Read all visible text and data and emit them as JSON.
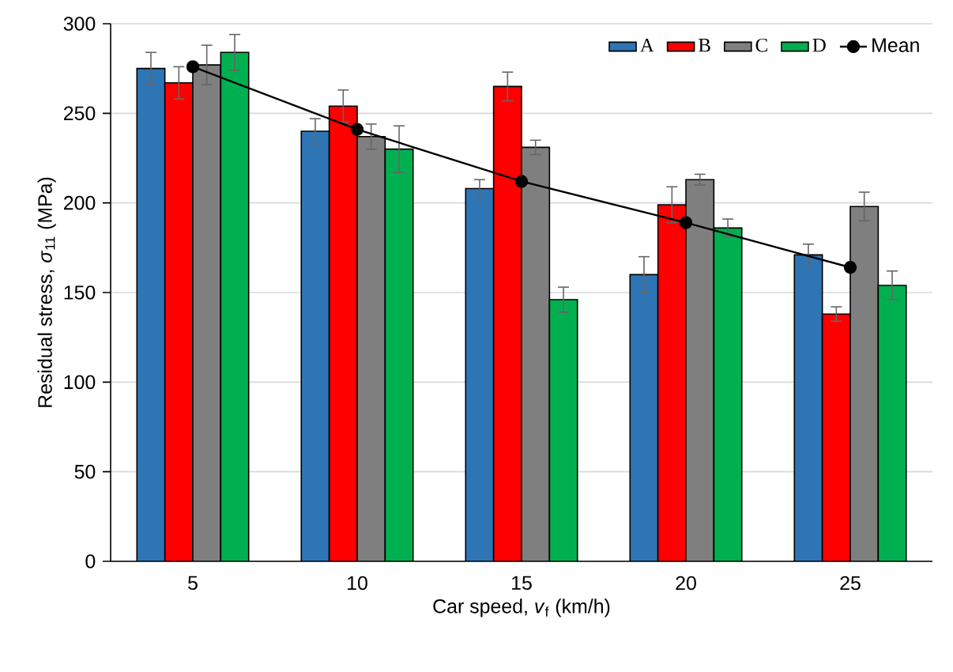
{
  "chart_data": {
    "type": "bar",
    "xlabel": "Car speed, *v*$_{f}$ (km/h)",
    "ylabel": "Residual stress, *σ*$_{11}$ (MPa)",
    "categories": [
      "5",
      "10",
      "15",
      "20",
      "25"
    ],
    "series": [
      {
        "name": "A",
        "color": "#2e75b6",
        "values": [
          275,
          240,
          208,
          160,
          171
        ],
        "errors": [
          9,
          7,
          5,
          10,
          6
        ]
      },
      {
        "name": "B",
        "color": "#ff0000",
        "values": [
          267,
          254,
          265,
          199,
          138
        ],
        "errors": [
          9,
          9,
          8,
          10,
          4
        ]
      },
      {
        "name": "C",
        "color": "#7f7f7f",
        "values": [
          277,
          237,
          231,
          213,
          198
        ],
        "errors": [
          11,
          7,
          4,
          3,
          8
        ]
      },
      {
        "name": "D",
        "color": "#00b050",
        "values": [
          284,
          230,
          146,
          186,
          154
        ],
        "errors": [
          10,
          13,
          7,
          5,
          8
        ]
      },
      {
        "name": "Mean",
        "type": "line",
        "color": "#000000",
        "marker": "circle",
        "values": [
          276,
          241,
          212,
          189,
          164
        ]
      }
    ],
    "ylim": [
      0,
      300
    ],
    "yticks": [
      0,
      50,
      100,
      150,
      200,
      250,
      300
    ],
    "grid": "y",
    "legend": "top right"
  }
}
